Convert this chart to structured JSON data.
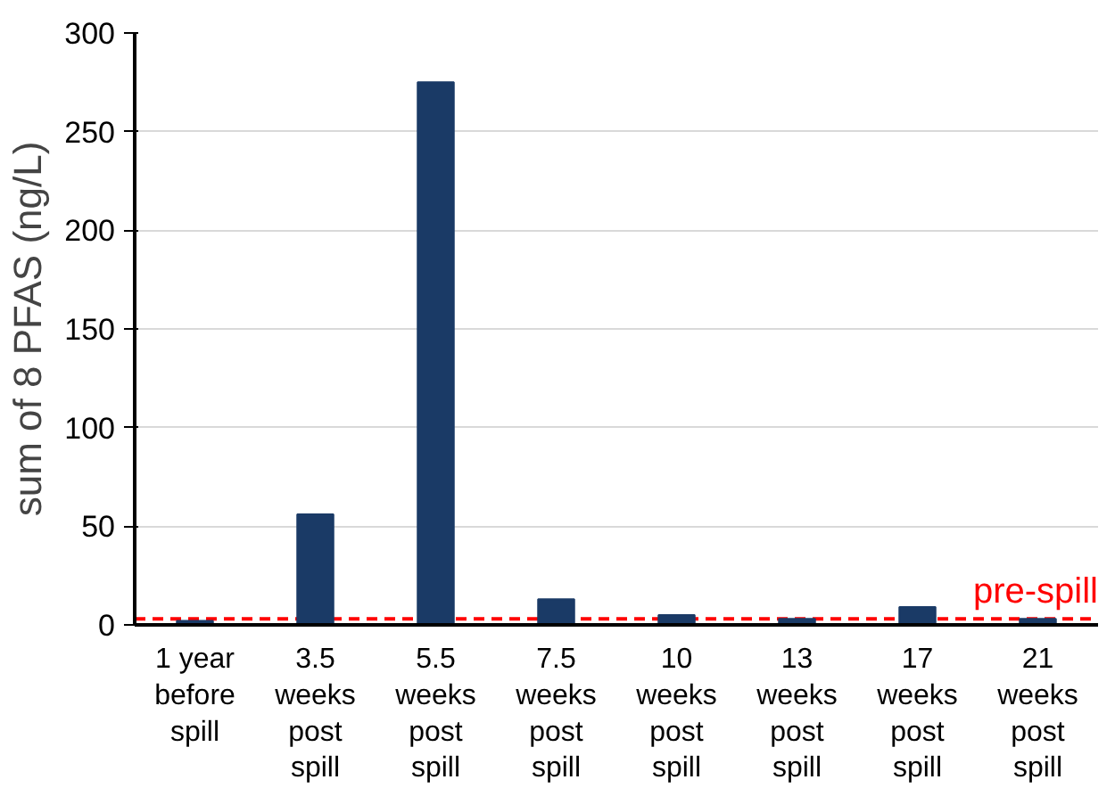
{
  "chart_data": {
    "type": "bar",
    "ylabel": "sum of 8 PFAS (ng/L)",
    "categories": [
      "1 year before spill",
      "3.5 weeks post spill",
      "5.5 weeks post spill",
      "7.5 weeks post spill",
      "10 weeks post spill",
      "13 weeks post spill",
      "17 weeks post spill",
      "21 weeks post spill"
    ],
    "values": [
      2,
      56,
      275,
      13,
      5,
      3,
      9,
      3
    ],
    "color": "#1a3a66",
    "ylim": [
      0,
      300
    ],
    "yticks": [
      0,
      50,
      100,
      150,
      200,
      250,
      300
    ],
    "grid": "y",
    "ref_lines": [
      {
        "axis": "y",
        "value": 3,
        "label": "pre-spill",
        "color": "#ff0000",
        "line_style": "dashed"
      }
    ]
  }
}
